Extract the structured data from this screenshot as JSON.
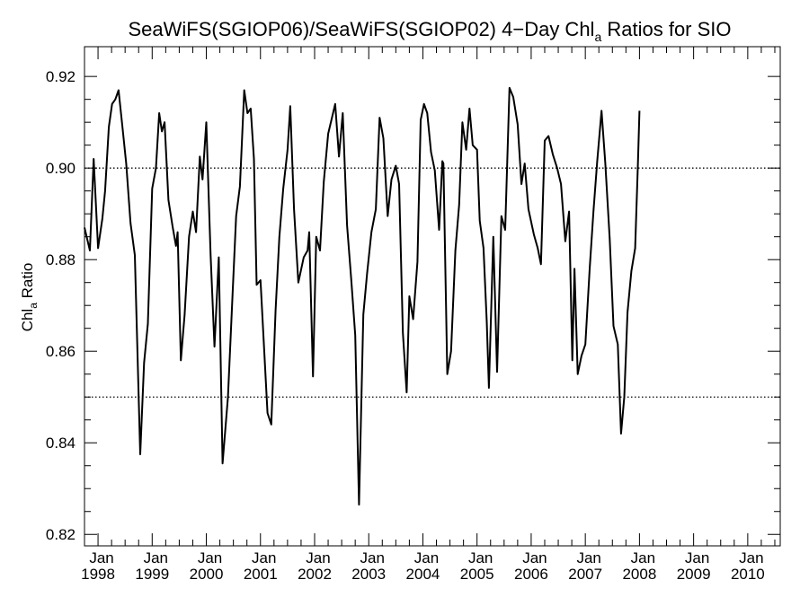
{
  "chart_data": {
    "type": "line",
    "title_parts": {
      "pre": "SeaWiFS(SGIOP06)/SeaWiFS(SGIOP02) 4−Day Chl",
      "sub": "a",
      "post": " Ratios for SIO"
    },
    "ylabel_parts": {
      "pre": "Chl",
      "sub": "a",
      "post": " Ratio"
    },
    "xlabel": "",
    "x_range": [
      1997.75,
      2010.6
    ],
    "ylim": [
      0.8175,
      0.9265
    ],
    "y_ticks": [
      {
        "value": 0.82,
        "label": "0.82"
      },
      {
        "value": 0.84,
        "label": "0.84"
      },
      {
        "value": 0.86,
        "label": "0.86"
      },
      {
        "value": 0.88,
        "label": "0.88"
      },
      {
        "value": 0.9,
        "label": "0.90"
      },
      {
        "value": 0.92,
        "label": "0.92"
      }
    ],
    "x_ticks": [
      {
        "year": 1998,
        "month": "Jan",
        "label": "1998"
      },
      {
        "year": 1999,
        "month": "Jan",
        "label": "1999"
      },
      {
        "year": 2000,
        "month": "Jan",
        "label": "2000"
      },
      {
        "year": 2001,
        "month": "Jan",
        "label": "2001"
      },
      {
        "year": 2002,
        "month": "Jan",
        "label": "2002"
      },
      {
        "year": 2003,
        "month": "Jan",
        "label": "2003"
      },
      {
        "year": 2004,
        "month": "Jan",
        "label": "2004"
      },
      {
        "year": 2005,
        "month": "Jan",
        "label": "2005"
      },
      {
        "year": 2006,
        "month": "Jan",
        "label": "2006"
      },
      {
        "year": 2007,
        "month": "Jan",
        "label": "2007"
      },
      {
        "year": 2008,
        "month": "Jan",
        "label": "2008"
      },
      {
        "year": 2009,
        "month": "Jan",
        "label": "2009"
      },
      {
        "year": 2010,
        "month": "Jan",
        "label": "2010"
      }
    ],
    "reference_lines": [
      {
        "y": 0.9,
        "style": "dotted"
      },
      {
        "y": 0.85,
        "style": "dotted"
      }
    ],
    "grid": false,
    "series": [
      {
        "color": "#000000",
        "points": [
          [
            1997.75,
            0.887
          ],
          [
            1997.85,
            0.882
          ],
          [
            1997.92,
            0.902
          ],
          [
            1998.0,
            0.8825
          ],
          [
            1998.08,
            0.889
          ],
          [
            1998.13,
            0.895
          ],
          [
            1998.2,
            0.909
          ],
          [
            1998.26,
            0.914
          ],
          [
            1998.32,
            0.915
          ],
          [
            1998.38,
            0.917
          ],
          [
            1998.45,
            0.909
          ],
          [
            1998.52,
            0.901
          ],
          [
            1998.6,
            0.888
          ],
          [
            1998.68,
            0.881
          ],
          [
            1998.78,
            0.8375
          ],
          [
            1998.85,
            0.8575
          ],
          [
            1998.92,
            0.866
          ],
          [
            1999.0,
            0.8955
          ],
          [
            1999.07,
            0.9
          ],
          [
            1999.13,
            0.912
          ],
          [
            1999.18,
            0.908
          ],
          [
            1999.23,
            0.91
          ],
          [
            1999.3,
            0.893
          ],
          [
            1999.38,
            0.887
          ],
          [
            1999.44,
            0.883
          ],
          [
            1999.47,
            0.886
          ],
          [
            1999.53,
            0.858
          ],
          [
            1999.6,
            0.868
          ],
          [
            1999.68,
            0.885
          ],
          [
            1999.75,
            0.8905
          ],
          [
            1999.81,
            0.886
          ],
          [
            1999.88,
            0.9025
          ],
          [
            1999.93,
            0.8975
          ],
          [
            2000.0,
            0.91
          ],
          [
            2000.08,
            0.881
          ],
          [
            2000.15,
            0.861
          ],
          [
            2000.23,
            0.8805
          ],
          [
            2000.3,
            0.8355
          ],
          [
            2000.4,
            0.85
          ],
          [
            2000.48,
            0.871
          ],
          [
            2000.55,
            0.8895
          ],
          [
            2000.62,
            0.896
          ],
          [
            2000.7,
            0.917
          ],
          [
            2000.76,
            0.912
          ],
          [
            2000.82,
            0.913
          ],
          [
            2000.88,
            0.902
          ],
          [
            2000.93,
            0.8745
          ],
          [
            2001.0,
            0.8755
          ],
          [
            2001.13,
            0.8465
          ],
          [
            2001.2,
            0.844
          ],
          [
            2001.28,
            0.869
          ],
          [
            2001.35,
            0.885
          ],
          [
            2001.42,
            0.8955
          ],
          [
            2001.5,
            0.904
          ],
          [
            2001.55,
            0.9135
          ],
          [
            2001.62,
            0.891
          ],
          [
            2001.7,
            0.875
          ],
          [
            2001.8,
            0.8805
          ],
          [
            2001.87,
            0.882
          ],
          [
            2001.9,
            0.886
          ],
          [
            2001.97,
            0.8545
          ],
          [
            2002.03,
            0.885
          ],
          [
            2002.1,
            0.882
          ],
          [
            2002.17,
            0.897
          ],
          [
            2002.25,
            0.9075
          ],
          [
            2002.32,
            0.911
          ],
          [
            2002.38,
            0.914
          ],
          [
            2002.45,
            0.9025
          ],
          [
            2002.52,
            0.912
          ],
          [
            2002.6,
            0.8875
          ],
          [
            2002.68,
            0.875
          ],
          [
            2002.75,
            0.8635
          ],
          [
            2002.82,
            0.8265
          ],
          [
            2002.9,
            0.868
          ],
          [
            2002.97,
            0.877
          ],
          [
            2003.05,
            0.886
          ],
          [
            2003.13,
            0.891
          ],
          [
            2003.2,
            0.911
          ],
          [
            2003.27,
            0.9065
          ],
          [
            2003.35,
            0.8895
          ],
          [
            2003.42,
            0.8975
          ],
          [
            2003.5,
            0.9005
          ],
          [
            2003.56,
            0.8965
          ],
          [
            2003.63,
            0.864
          ],
          [
            2003.7,
            0.851
          ],
          [
            2003.75,
            0.872
          ],
          [
            2003.82,
            0.867
          ],
          [
            2003.9,
            0.8795
          ],
          [
            2003.96,
            0.9105
          ],
          [
            2004.02,
            0.914
          ],
          [
            2004.08,
            0.912
          ],
          [
            2004.15,
            0.9035
          ],
          [
            2004.22,
            0.8995
          ],
          [
            2004.3,
            0.8865
          ],
          [
            2004.36,
            0.9015
          ],
          [
            2004.38,
            0.901
          ],
          [
            2004.45,
            0.855
          ],
          [
            2004.52,
            0.86
          ],
          [
            2004.6,
            0.882
          ],
          [
            2004.67,
            0.892
          ],
          [
            2004.73,
            0.91
          ],
          [
            2004.8,
            0.904
          ],
          [
            2004.86,
            0.913
          ],
          [
            2004.92,
            0.905
          ],
          [
            2005.0,
            0.904
          ],
          [
            2005.05,
            0.8885
          ],
          [
            2005.12,
            0.8825
          ],
          [
            2005.18,
            0.8665
          ],
          [
            2005.22,
            0.852
          ],
          [
            2005.3,
            0.885
          ],
          [
            2005.37,
            0.8555
          ],
          [
            2005.45,
            0.8895
          ],
          [
            2005.52,
            0.8865
          ],
          [
            2005.6,
            0.9175
          ],
          [
            2005.67,
            0.9155
          ],
          [
            2005.75,
            0.9095
          ],
          [
            2005.82,
            0.8965
          ],
          [
            2005.88,
            0.901
          ],
          [
            2005.95,
            0.891
          ],
          [
            2006.05,
            0.8855
          ],
          [
            2006.12,
            0.8825
          ],
          [
            2006.18,
            0.879
          ],
          [
            2006.25,
            0.906
          ],
          [
            2006.32,
            0.907
          ],
          [
            2006.4,
            0.903
          ],
          [
            2006.48,
            0.9
          ],
          [
            2006.55,
            0.8965
          ],
          [
            2006.63,
            0.884
          ],
          [
            2006.7,
            0.8905
          ],
          [
            2006.76,
            0.858
          ],
          [
            2006.8,
            0.878
          ],
          [
            2006.86,
            0.855
          ],
          [
            2006.93,
            0.859
          ],
          [
            2007.0,
            0.8615
          ],
          [
            2007.08,
            0.878
          ],
          [
            2007.15,
            0.8905
          ],
          [
            2007.22,
            0.9015
          ],
          [
            2007.3,
            0.9125
          ],
          [
            2007.37,
            0.901
          ],
          [
            2007.45,
            0.8845
          ],
          [
            2007.52,
            0.8655
          ],
          [
            2007.6,
            0.8615
          ],
          [
            2007.66,
            0.842
          ],
          [
            2007.72,
            0.85
          ],
          [
            2007.78,
            0.8685
          ],
          [
            2007.85,
            0.8775
          ],
          [
            2007.92,
            0.8825
          ],
          [
            2007.97,
            0.9005
          ],
          [
            2008.0,
            0.9125
          ]
        ]
      }
    ]
  }
}
